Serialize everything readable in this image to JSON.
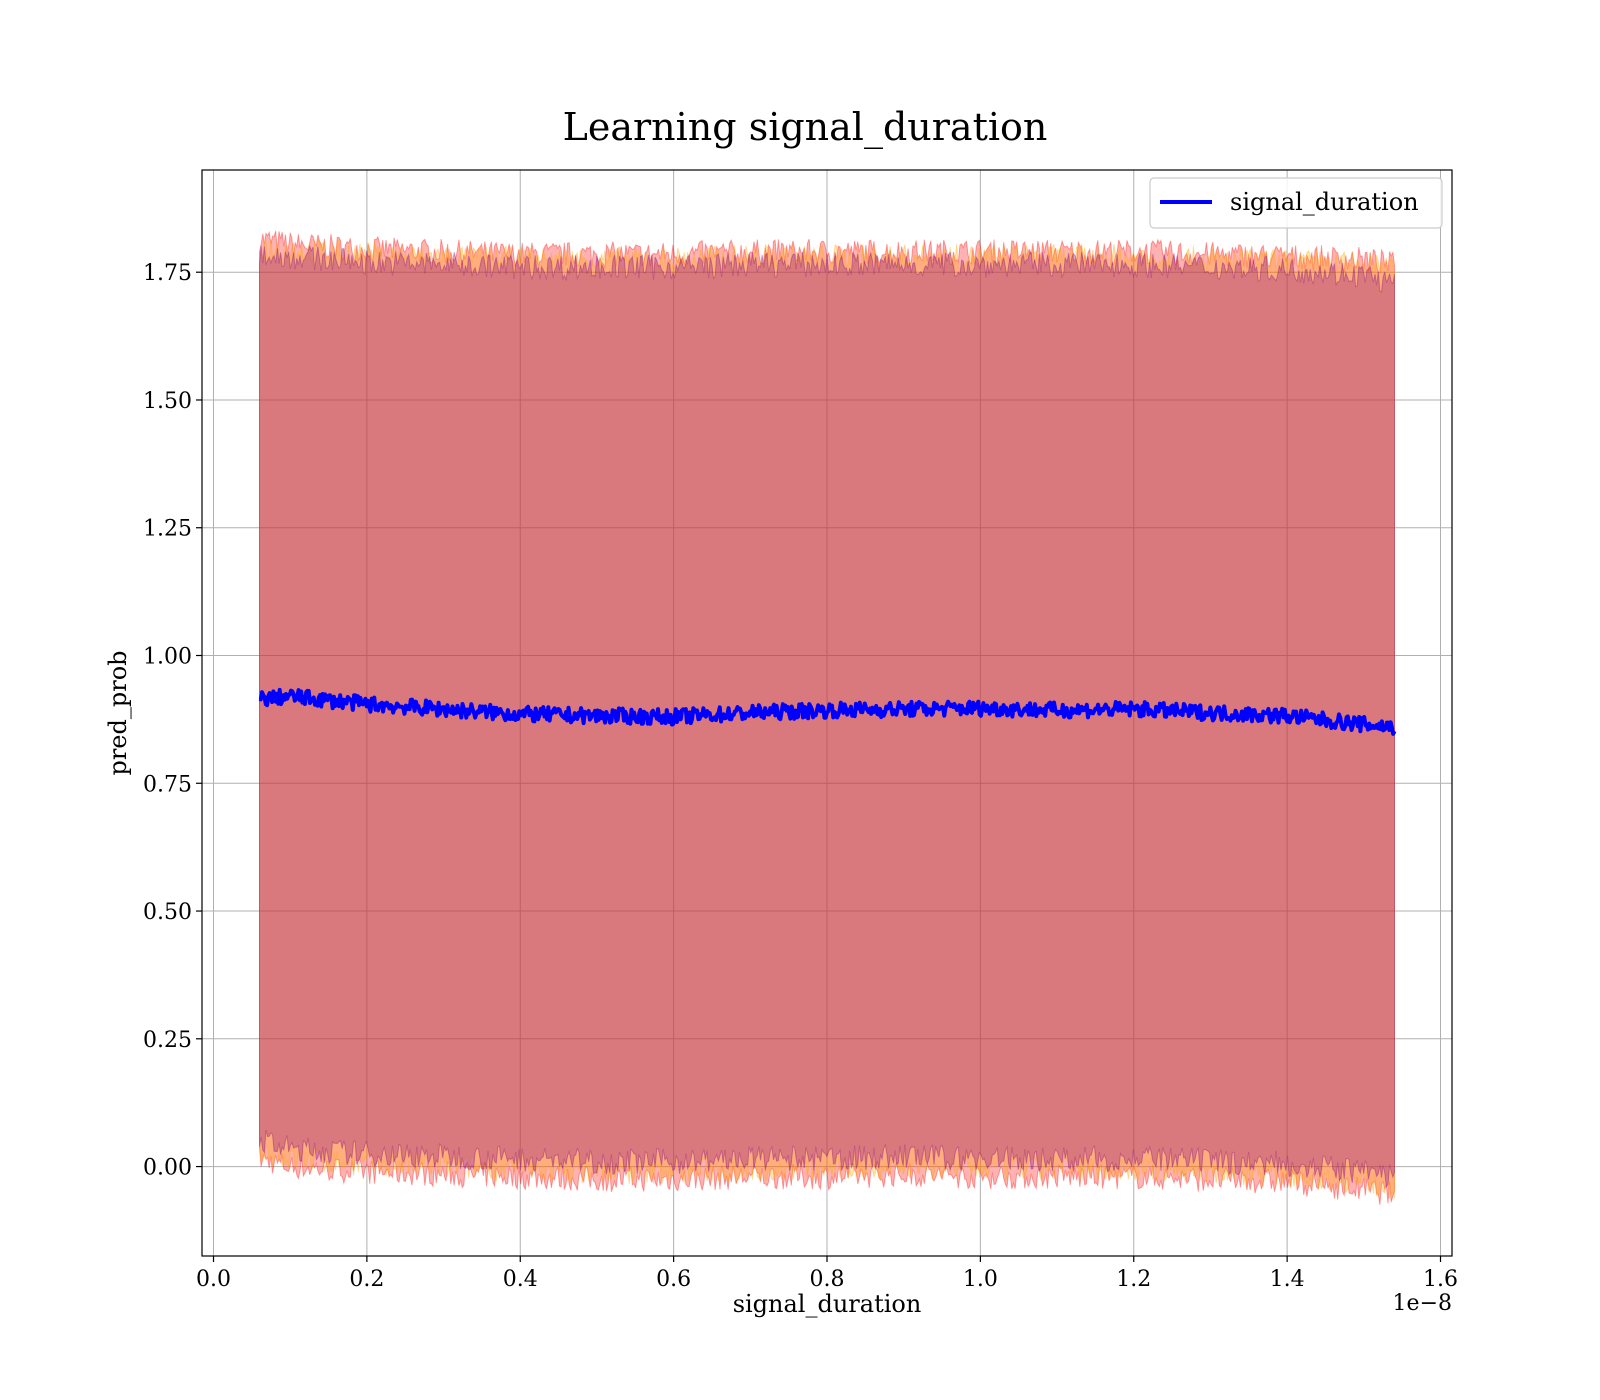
{
  "chart_data": {
    "type": "line",
    "title": "Learning signal_duration",
    "xlabel": "signal_duration",
    "ylabel": "pred_prob",
    "x_offset_text": "1e−8",
    "xlim": [
      -0.015,
      1.615
    ],
    "ylim": [
      -0.175,
      1.95
    ],
    "x_ticks": [
      0.0,
      0.2,
      0.4,
      0.6,
      0.8,
      1.0,
      1.2,
      1.4,
      1.6
    ],
    "x_tick_labels": [
      "0.0",
      "0.2",
      "0.4",
      "0.6",
      "0.8",
      "1.0",
      "1.2",
      "1.4",
      "1.6"
    ],
    "y_ticks": [
      0.0,
      0.25,
      0.5,
      0.75,
      1.0,
      1.25,
      1.5,
      1.75
    ],
    "y_tick_labels": [
      "0.00",
      "0.25",
      "0.50",
      "0.75",
      "1.00",
      "1.25",
      "1.50",
      "1.75"
    ],
    "grid": true,
    "legend": {
      "position": "top-right",
      "entries": [
        "signal_duration"
      ]
    },
    "series": [
      {
        "name": "signal_duration",
        "color": "#0000ff",
        "x": [
          0.06,
          0.1,
          0.2,
          0.3,
          0.4,
          0.5,
          0.6,
          0.7,
          0.8,
          0.9,
          1.0,
          1.1,
          1.2,
          1.3,
          1.4,
          1.5,
          1.54
        ],
        "y": [
          0.915,
          0.92,
          0.905,
          0.895,
          0.885,
          0.882,
          0.88,
          0.888,
          0.893,
          0.895,
          0.897,
          0.893,
          0.895,
          0.888,
          0.882,
          0.865,
          0.86
        ]
      }
    ],
    "bands": [
      {
        "color": "#ff0000",
        "x": [
          0.06,
          0.1,
          0.2,
          0.3,
          0.4,
          0.5,
          0.6,
          0.7,
          0.8,
          0.9,
          1.0,
          1.1,
          1.2,
          1.3,
          1.4,
          1.5,
          1.54
        ],
        "upper": [
          1.815,
          1.805,
          1.795,
          1.79,
          1.785,
          1.785,
          1.785,
          1.79,
          1.79,
          1.79,
          1.79,
          1.79,
          1.79,
          1.785,
          1.78,
          1.775,
          1.765
        ],
        "lower": [
          0.015,
          0.0,
          -0.01,
          -0.015,
          -0.02,
          -0.025,
          -0.025,
          -0.02,
          -0.02,
          -0.015,
          -0.02,
          -0.02,
          -0.02,
          -0.025,
          -0.03,
          -0.045,
          -0.055
        ]
      },
      {
        "color": "#ffa500",
        "x": [
          0.06,
          0.1,
          0.2,
          0.3,
          0.4,
          0.5,
          0.6,
          0.7,
          0.8,
          0.9,
          1.0,
          1.1,
          1.2,
          1.3,
          1.4,
          1.5,
          1.54
        ],
        "upper": [
          1.8,
          1.795,
          1.785,
          1.78,
          1.775,
          1.775,
          1.775,
          1.78,
          1.78,
          1.78,
          1.78,
          1.78,
          1.78,
          1.775,
          1.77,
          1.765,
          1.755
        ],
        "lower": [
          0.03,
          0.015,
          0.005,
          0.0,
          -0.005,
          -0.01,
          -0.01,
          -0.005,
          -0.005,
          0.0,
          -0.005,
          -0.005,
          -0.005,
          -0.01,
          -0.015,
          -0.03,
          -0.04
        ]
      },
      {
        "color": "#800080",
        "x": [
          0.06,
          0.1,
          0.2,
          0.3,
          0.4,
          0.5,
          0.6,
          0.7,
          0.8,
          0.9,
          1.0,
          1.1,
          1.2,
          1.3,
          1.4,
          1.5,
          1.54
        ],
        "upper": [
          1.785,
          1.78,
          1.77,
          1.765,
          1.76,
          1.76,
          1.76,
          1.765,
          1.765,
          1.765,
          1.765,
          1.765,
          1.765,
          1.76,
          1.755,
          1.745,
          1.725
        ],
        "lower": [
          0.05,
          0.035,
          0.025,
          0.02,
          0.015,
          0.01,
          0.01,
          0.015,
          0.015,
          0.02,
          0.015,
          0.015,
          0.015,
          0.01,
          0.005,
          -0.01,
          -0.02
        ]
      }
    ]
  }
}
